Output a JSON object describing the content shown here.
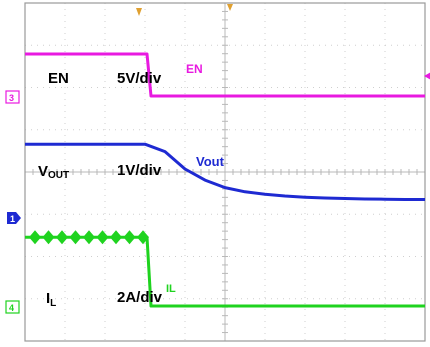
{
  "chart_data": {
    "type": "line",
    "title": "",
    "xlabel": "",
    "ylabel": "",
    "grid": true,
    "x": [
      0,
      1,
      2,
      3,
      3.5,
      4,
      4.5,
      5,
      5.5,
      6,
      6.5,
      7,
      7.5,
      8,
      8.5,
      9,
      9.5,
      10
    ],
    "series": [
      {
        "name": "EN",
        "color": "#e81ae0",
        "label": "EN",
        "scale": "5V/div",
        "channel_tag": "EN",
        "marker": "3",
        "values": [
          10,
          10,
          10,
          10,
          0,
          0,
          0,
          0,
          0,
          0,
          0,
          0,
          0,
          0,
          0,
          0,
          0,
          0
        ]
      },
      {
        "name": "Vout",
        "color": "#1e2ad2",
        "label": "V",
        "label_sub": "OUT",
        "scale": "1V/div",
        "channel_tag": "Vout",
        "marker": "1",
        "values": [
          3.3,
          3.3,
          3.3,
          3.3,
          3.0,
          2.3,
          1.85,
          1.55,
          1.38,
          1.28,
          1.21,
          1.16,
          1.13,
          1.11,
          1.09,
          1.08,
          1.07,
          1.07
        ]
      },
      {
        "name": "IL",
        "color": "#1fd31f",
        "label": "I",
        "label_sub": "L",
        "scale": "2A/div",
        "channel_tag": "IL",
        "marker": "4",
        "values": [
          3.2,
          3.2,
          3.2,
          3.2,
          0,
          0,
          0,
          0,
          0,
          0,
          0,
          0,
          0,
          0,
          0,
          0,
          0,
          0
        ]
      }
    ]
  }
}
